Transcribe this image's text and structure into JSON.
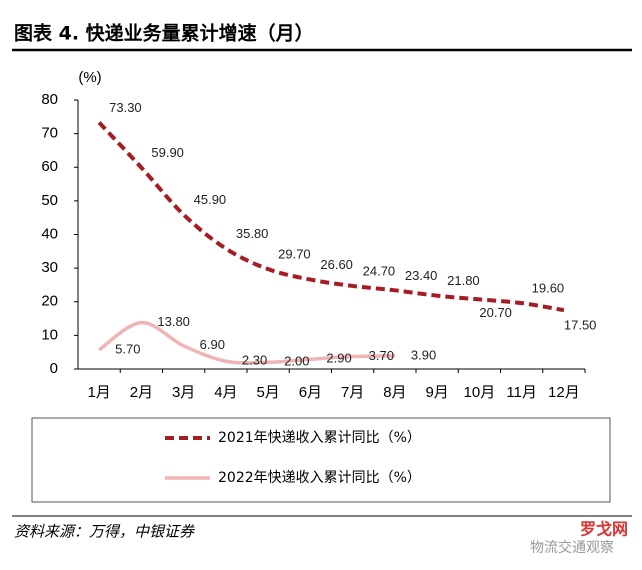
{
  "chart_data": {
    "type": "line",
    "title": "图表 4. 快递业务量累计增速（月）",
    "y_label": "(%)",
    "source": "资料来源：万得，中银证券",
    "watermark": [
      "罗戈网",
      "物流交通观察"
    ],
    "categories": [
      "1月",
      "2月",
      "3月",
      "4月",
      "5月",
      "6月",
      "7月",
      "8月",
      "9月",
      "10月",
      "11月",
      "12月"
    ],
    "series": [
      {
        "name": "2021年快递收入累计同比（%）",
        "color": "#a51c22",
        "dashed": true,
        "values": [
          73.3,
          59.9,
          45.9,
          35.8,
          29.7,
          26.6,
          24.7,
          23.4,
          21.8,
          20.7,
          19.6,
          17.5
        ],
        "value_labels": [
          "73.30",
          "59.90",
          "45.90",
          "35.80",
          "29.70",
          "26.60",
          "24.70",
          "23.40",
          "21.80",
          "20.70",
          "19.60",
          "17.50"
        ]
      },
      {
        "name": "2022年快递收入累计同比（%）",
        "color": "#f0b4b4",
        "dashed": false,
        "values": [
          5.7,
          13.8,
          6.9,
          2.3,
          2.0,
          2.9,
          3.7,
          3.9,
          null,
          null,
          null,
          null
        ],
        "value_labels": [
          "5.70",
          "13.80",
          "6.90",
          "2.30",
          "2.00",
          "2.90",
          "3.70",
          "3.90",
          null,
          null,
          null,
          null
        ]
      }
    ],
    "ylim": [
      0,
      80
    ],
    "yticks": [
      0,
      10,
      20,
      30,
      40,
      50,
      60,
      70,
      80
    ],
    "grid": false
  }
}
